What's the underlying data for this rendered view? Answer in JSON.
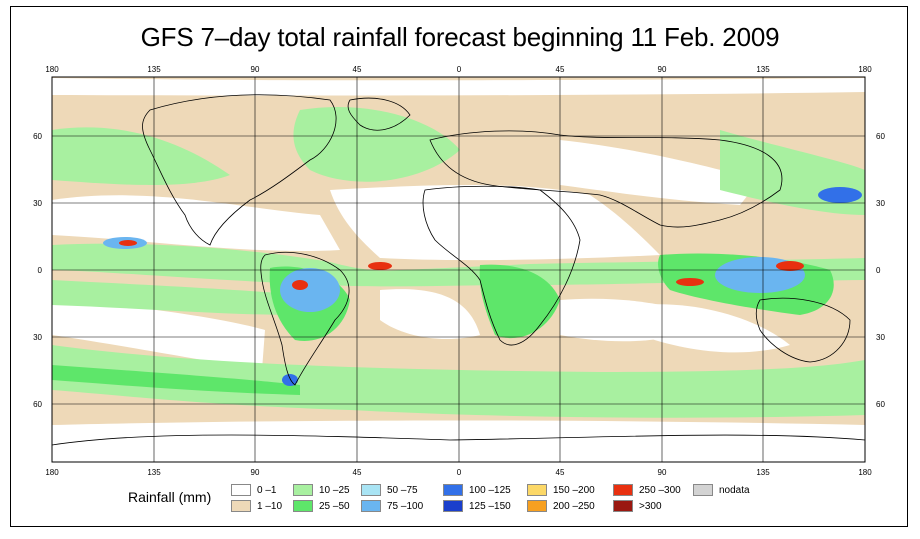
{
  "title": "GFS 7–day total rainfall forecast beginning 11 Feb. 2009",
  "lon_ticks": [
    "180",
    "135",
    "90",
    "45",
    "0",
    "45",
    "90",
    "135",
    "180"
  ],
  "lat_ticks_left": [
    "60",
    "30",
    "0",
    "30",
    "60"
  ],
  "lat_ticks_right": [
    "60",
    "30",
    "0",
    "30",
    "60"
  ],
  "legend": {
    "label": "Rainfall (mm)",
    "items": [
      {
        "label": "0 –1",
        "color": "#ffffff"
      },
      {
        "label": "1 –10",
        "color": "#eed9b8"
      },
      {
        "label": "10 –25",
        "color": "#a8f0a0"
      },
      {
        "label": "25 –50",
        "color": "#5ee66a"
      },
      {
        "label": "50 –75",
        "color": "#a9e4f4"
      },
      {
        "label": "75 –100",
        "color": "#6ab5f0"
      },
      {
        "label": "100 –125",
        "color": "#3270e8"
      },
      {
        "label": "125 –150",
        "color": "#1a3fcc"
      },
      {
        "label": "150 –200",
        "color": "#fcd867"
      },
      {
        "label": "200 –250",
        "color": "#f7a020"
      },
      {
        "label": "250 –300",
        "color": "#e83010"
      },
      {
        "label": ">300",
        "color": "#9a1810"
      },
      {
        "label": "nodata",
        "color": "#d3d3d3"
      }
    ]
  }
}
